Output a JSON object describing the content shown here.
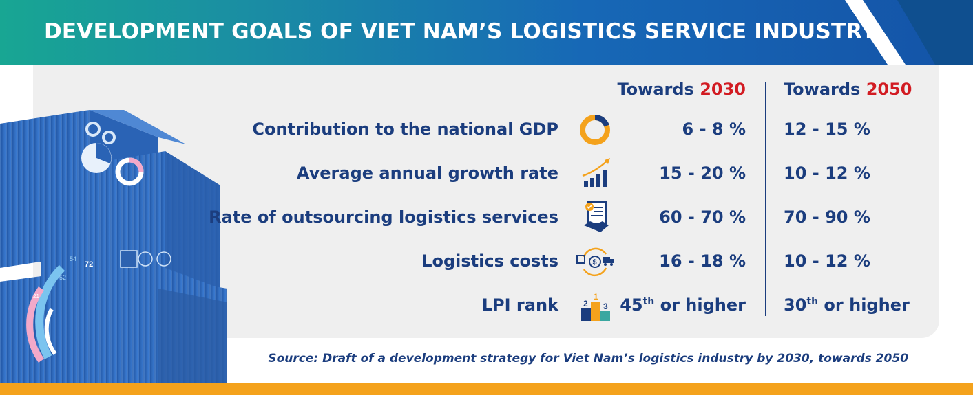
{
  "title": "DEVELOPMENT GOALS OF VIET NAM’S LOGISTICS SERVICE INDUSTRY",
  "columns": [
    {
      "prefix": "Towards",
      "year": "2030"
    },
    {
      "prefix": "Towards",
      "year": "2050"
    }
  ],
  "rows": [
    {
      "label": "Contribution to the national GDP",
      "icon": "donut-chart-icon",
      "v2030": "6 - 8 %",
      "v2050": "12 - 15 %"
    },
    {
      "label": "Average annual growth rate",
      "icon": "growth-bar-chart-icon",
      "v2030": "15 - 20 %",
      "v2050": "10 - 12 %"
    },
    {
      "label": "Rate of outsourcing logistics services",
      "icon": "handshake-contract-icon",
      "v2030": "60 - 70 %",
      "v2050": "70 - 90 %"
    },
    {
      "label": "Logistics costs",
      "icon": "cost-cycle-icon",
      "v2030": "16 - 18 %",
      "v2050": "10 - 12 %"
    },
    {
      "label": "LPI rank",
      "icon": "podium-rank-icon",
      "v2030_num": "45",
      "v2030_sup": "th",
      "v2030_rest": " or higher",
      "v2050_num": "30",
      "v2050_sup": "th",
      "v2050_rest": " or higher"
    }
  ],
  "illustration_labels": {
    "gauge_outer": "72",
    "gauge_mid": "54",
    "gauge_inner": "52",
    "gauge_small": "21"
  },
  "source": "Source: Draft of a development strategy for Viet Nam’s logistics industry by 2030, towards 2050",
  "colors": {
    "navy": "#1b3d7e",
    "red": "#d21b22",
    "orange": "#f4a21c",
    "teal": "#18a693",
    "blue": "#1453a7",
    "panel": "#efefef"
  }
}
